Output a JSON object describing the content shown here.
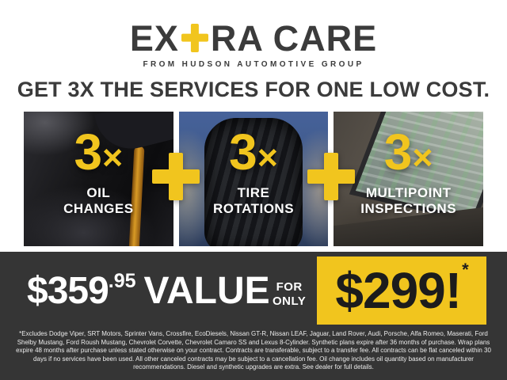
{
  "brand": {
    "logo_left": "EX",
    "logo_right": "RA CARE",
    "tagline": "FROM HUDSON AUTOMOTIVE GROUP"
  },
  "headline": "GET 3X THE SERVICES FOR ONE LOW COST.",
  "services": [
    {
      "multiplier": "3",
      "times_symbol": "×",
      "label": "OIL\nCHANGES"
    },
    {
      "multiplier": "3",
      "times_symbol": "×",
      "label": "TIRE\nROTATIONS"
    },
    {
      "multiplier": "3",
      "times_symbol": "×",
      "label": "MULTIPOINT\nINSPECTIONS"
    }
  ],
  "offer": {
    "value_amount": "$359",
    "value_cents": ".95",
    "value_word": "VALUE",
    "for_only": "FOR\nONLY",
    "sale_price": "$299!",
    "footnote_marker": "*"
  },
  "disclaimer": "*Excludes Dodge Viper, SRT Motors, Sprinter Vans, Crossfire, EcoDiesels, Nissan GT-R, Nissan LEAF, Jaguar, Land Rover, Audi, Porsche, Alfa Romeo, Maserati, Ford Shelby Mustang, Ford Roush Mustang, Chevrolet Corvette, Chevrolet Camaro SS and Lexus 8-Cylinder. Synthetic plans expire after 36 months of purchase. Wrap plans expire 48 months after purchase unless stated otherwise on your contract. Contracts are transferable, subject to a transfer fee. All contracts can be flat canceled within 30 days if no services have been used. All other canceled contracts may be subject to a cancellation fee. Oil change includes oil quantity based on manufacturer recommendations. Diesel and synthetic upgrades are extra. See dealer for full details.",
  "colors": {
    "accent_yellow": "#F1C51E",
    "charcoal_text": "#3B3B3B",
    "band_background": "#353535",
    "label_white": "#FFFFFF",
    "sale_price_black": "#1C1C1C"
  }
}
